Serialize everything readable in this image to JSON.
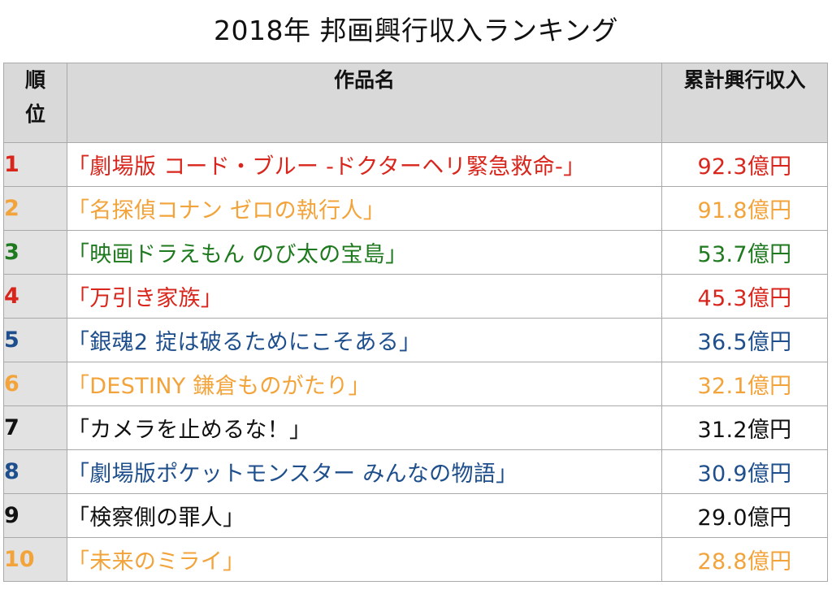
{
  "page": {
    "title": "2018年 邦画興行収入ランキング"
  },
  "table": {
    "headers": {
      "rank_line1": "順",
      "rank_line2": "位",
      "title": "作品名",
      "revenue": "累計興行収入"
    },
    "rows": [
      {
        "rank": "1",
        "title": "「劇場版 コード・ブルー -ドクターヘリ緊急救命-」",
        "revenue": "92.3億円",
        "color": "#d9261c"
      },
      {
        "rank": "2",
        "title": "「名探偵コナン ゼロの執行人」",
        "revenue": "91.8億円",
        "color": "#f2a33a"
      },
      {
        "rank": "3",
        "title": "「映画ドラえもん のび太の宝島」",
        "revenue": "53.7億円",
        "color": "#1f7a1f"
      },
      {
        "rank": "4",
        "title": "「万引き家族」",
        "revenue": "45.3億円",
        "color": "#d9261c"
      },
      {
        "rank": "5",
        "title": "「銀魂2 掟は破るためにこそある」",
        "revenue": "36.5億円",
        "color": "#1e4f8c"
      },
      {
        "rank": "6",
        "title": "「DESTINY 鎌倉ものがたり」",
        "revenue": "32.1億円",
        "color": "#f2a33a"
      },
      {
        "rank": "7",
        "title": "「カメラを止めるな！」",
        "revenue": "31.2億円",
        "color": "#111111"
      },
      {
        "rank": "8",
        "title": "「劇場版ポケットモンスター みんなの物語」",
        "revenue": "30.9億円",
        "color": "#1e4f8c"
      },
      {
        "rank": "9",
        "title": "「検察側の罪人」",
        "revenue": "29.0億円",
        "color": "#111111"
      },
      {
        "rank": "10",
        "title": "「未来のミライ」",
        "revenue": "28.8億円",
        "color": "#f2a33a"
      }
    ]
  }
}
